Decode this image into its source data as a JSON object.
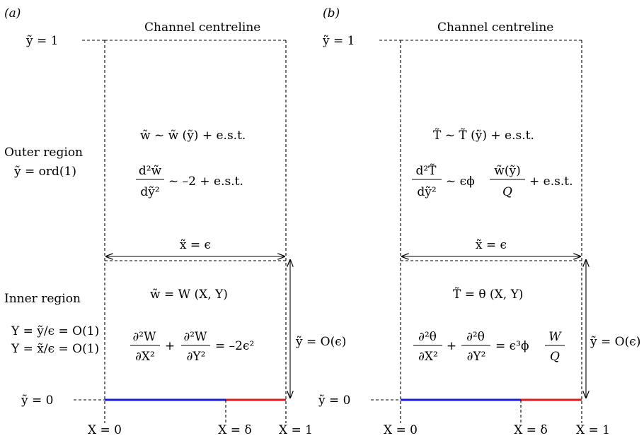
{
  "colors": {
    "blue_segment": "#1a1adb",
    "red_segment": "#e01818",
    "line": "#000000"
  },
  "panel_a": {
    "label": "(a)",
    "centreline": "Channel centreline",
    "y1": "ỹ = 1",
    "y0": "ỹ = 0",
    "outer_region": "Outer region",
    "outer_order": "ỹ = ord(1)",
    "outer_eq1": "w̃ ~ w̃ (ỹ) + e.s.t.",
    "outer_eq2_num": "d²w̃",
    "outer_eq2_den": "dỹ²",
    "outer_eq2_rhs": "~ –2 + e.s.t.",
    "width_label": "x̃ = ϵ",
    "inner_region": "Inner region",
    "inner_def1": "Y = ỹ/ϵ = O(1)",
    "inner_def2": "Y = x̃/ϵ = O(1)",
    "inner_eq1": "w̃ = W (X, Y)",
    "inner_frac1_num": "∂²W",
    "inner_frac1_den": "∂X²",
    "inner_plus": "+",
    "inner_frac2_num": "∂²W",
    "inner_frac2_den": "∂Y²",
    "inner_rhs": "= –2ϵ²",
    "height_label": "ỹ = O(ϵ)",
    "x0": "X = 0",
    "xd": "X = δ",
    "x1": "X = 1"
  },
  "panel_b": {
    "label": "(b)",
    "centreline": "Channel centreline",
    "y1": "ỹ = 1",
    "y0": "ỹ = 0",
    "outer_eq1": "T̃ ~ T̃ (ỹ) + e.s.t.",
    "outer_eq2_num": "d²T̃",
    "outer_eq2_den": "dỹ²",
    "outer_eq2_mid": "~ ϵϕ",
    "outer_eq2_frac_num": "w̃(ỹ)",
    "outer_eq2_frac_den": "Q",
    "outer_eq2_rhs": "+ e.s.t.",
    "width_label": "x̃ = ϵ",
    "inner_eq1": "T̃ = θ (X, Y)",
    "inner_frac1_num": "∂²θ",
    "inner_frac1_den": "∂X²",
    "inner_plus": "+",
    "inner_frac2_num": "∂²θ",
    "inner_frac2_den": "∂Y²",
    "inner_rhs": "= ϵ³ϕ",
    "inner_rhs_frac_num": "W",
    "inner_rhs_frac_den": "Q",
    "height_label": "ỹ = O(ϵ)",
    "x0": "X = 0",
    "xd": "X = δ",
    "x1": "X = 1"
  }
}
